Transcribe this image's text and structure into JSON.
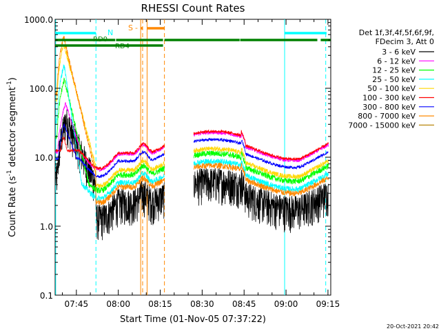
{
  "chart_data": {
    "type": "line",
    "title": "RHESSI Count Rates",
    "xlabel": "Start Time (01-Nov-05 07:37:22)",
    "ylabel_main": "Count Rate (s",
    "ylabel_sup": "-1",
    "ylabel_tail": " detector segment",
    "ylabel_sup2": "-1",
    "ylabel_close": ")",
    "y_scale": "log",
    "ylim": [
      0.1,
      1000
    ],
    "x_start_minutes": 457.4,
    "x_end_minutes": 556,
    "x_ticks": [
      {
        "label": "07:45",
        "t": 465
      },
      {
        "label": "08:00",
        "t": 480
      },
      {
        "label": "08:15",
        "t": 495
      },
      {
        "label": "08:30",
        "t": 510
      },
      {
        "label": "08:45",
        "t": 525
      },
      {
        "label": "09:00",
        "t": 540
      },
      {
        "label": "09:15",
        "t": 555
      }
    ],
    "y_ticks": [
      {
        "label": "0.1",
        "v": 0.1
      },
      {
        "label": "1.0",
        "v": 1
      },
      {
        "label": "10.0",
        "v": 10
      },
      {
        "label": "100.0",
        "v": 100
      },
      {
        "label": "1000.0",
        "v": 1000
      }
    ],
    "data_gap_minutes": [
      496.5,
      507
    ],
    "legend_header": [
      "Det 1f,3f,4f,5f,6f,9f,",
      "FDecim 3, Att 0"
    ],
    "series": [
      {
        "name": "3 - 6 keV",
        "color": "#000000",
        "base": 2.4,
        "noise": 0.35,
        "peak": 35,
        "decay": 5,
        "rise": 1.0
      },
      {
        "name": "6 - 12 keV",
        "color": "#ff00ff",
        "base": 12.0,
        "noise": 0.06,
        "peak": 60,
        "decay": 3.5,
        "rise": 0.8
      },
      {
        "name": "12 - 25 keV",
        "color": "#00ff00",
        "base": 6.0,
        "noise": 0.1,
        "peak": 135,
        "decay": 2.5,
        "rise": 0.4
      },
      {
        "name": "25 - 50 keV",
        "color": "#00ffff",
        "base": 4.6,
        "noise": 0.1,
        "peak": 220,
        "decay": 1.6,
        "rise": 0.3
      },
      {
        "name": "50 - 100 keV",
        "color": "#ffd700",
        "base": 7.0,
        "noise": 0.08,
        "peak": 440,
        "decay": 2.8,
        "rise": 0.2
      },
      {
        "name": "100 - 300 keV",
        "color": "#ff0000",
        "base": 12.5,
        "noise": 0.05,
        "peak": 20,
        "decay": 3,
        "rise": 0.1
      },
      {
        "name": "300 - 800 keV",
        "color": "#0000ff",
        "base": 9.5,
        "noise": 0.05,
        "peak": 30,
        "decay": 4,
        "rise": 0.3
      },
      {
        "name": "800 - 7000 keV",
        "color": "#ff8800",
        "base": 4.0,
        "noise": 0.1,
        "peak": 560,
        "decay": 2.5,
        "rise": 0.15
      },
      {
        "name": "7000 - 15000 keV",
        "color": "#b8860b",
        "base": 0,
        "noise": 0,
        "peak": 0,
        "decay": 0,
        "rise": 0
      }
    ],
    "annotations": {
      "N": {
        "label": "N",
        "color": "#00ffff"
      },
      "S": {
        "label": "S",
        "color": "#ff8800"
      },
      "RD0": {
        "label": "RD0",
        "color": "#008000"
      },
      "RD4": {
        "label": "RD4",
        "color": "#008000"
      }
    },
    "bars": [
      {
        "id": "N",
        "row": "top",
        "color": "#00ffff",
        "segments": [
          [
            457.4,
            472
          ],
          [
            539.5,
            554.5
          ]
        ]
      },
      {
        "id": "S",
        "row": "s",
        "color": "#ff8800",
        "segments": [
          [
            488,
            488.8
          ],
          [
            490.3,
            496.5
          ]
        ]
      },
      {
        "id": "RD0",
        "row": "rd",
        "color": "#008000",
        "segments": [
          [
            457.4,
            478.9
          ],
          [
            479.2,
            496
          ],
          [
            496.5,
            523.4
          ],
          [
            523.6,
            551.2
          ],
          [
            552.4,
            556
          ]
        ]
      }
    ],
    "vlines": [
      {
        "t": 457.6,
        "color": "#00ffff",
        "dash": false
      },
      {
        "t": 472.0,
        "color": "#00ffff",
        "dash": true
      },
      {
        "t": 488.0,
        "color": "#ff8800",
        "dash": false
      },
      {
        "t": 488.7,
        "color": "#ff8800",
        "dash": true
      },
      {
        "t": 490.3,
        "color": "#ff8800",
        "dash": false
      },
      {
        "t": 496.5,
        "color": "#ff8800",
        "dash": true
      },
      {
        "t": 539.5,
        "color": "#00ffff",
        "dash": false
      },
      {
        "t": 554.2,
        "color": "#00ffff",
        "dash": true
      }
    ],
    "timestamp": "20-Oct-2021 20:42",
    "grid": false,
    "legend_position": "right"
  }
}
